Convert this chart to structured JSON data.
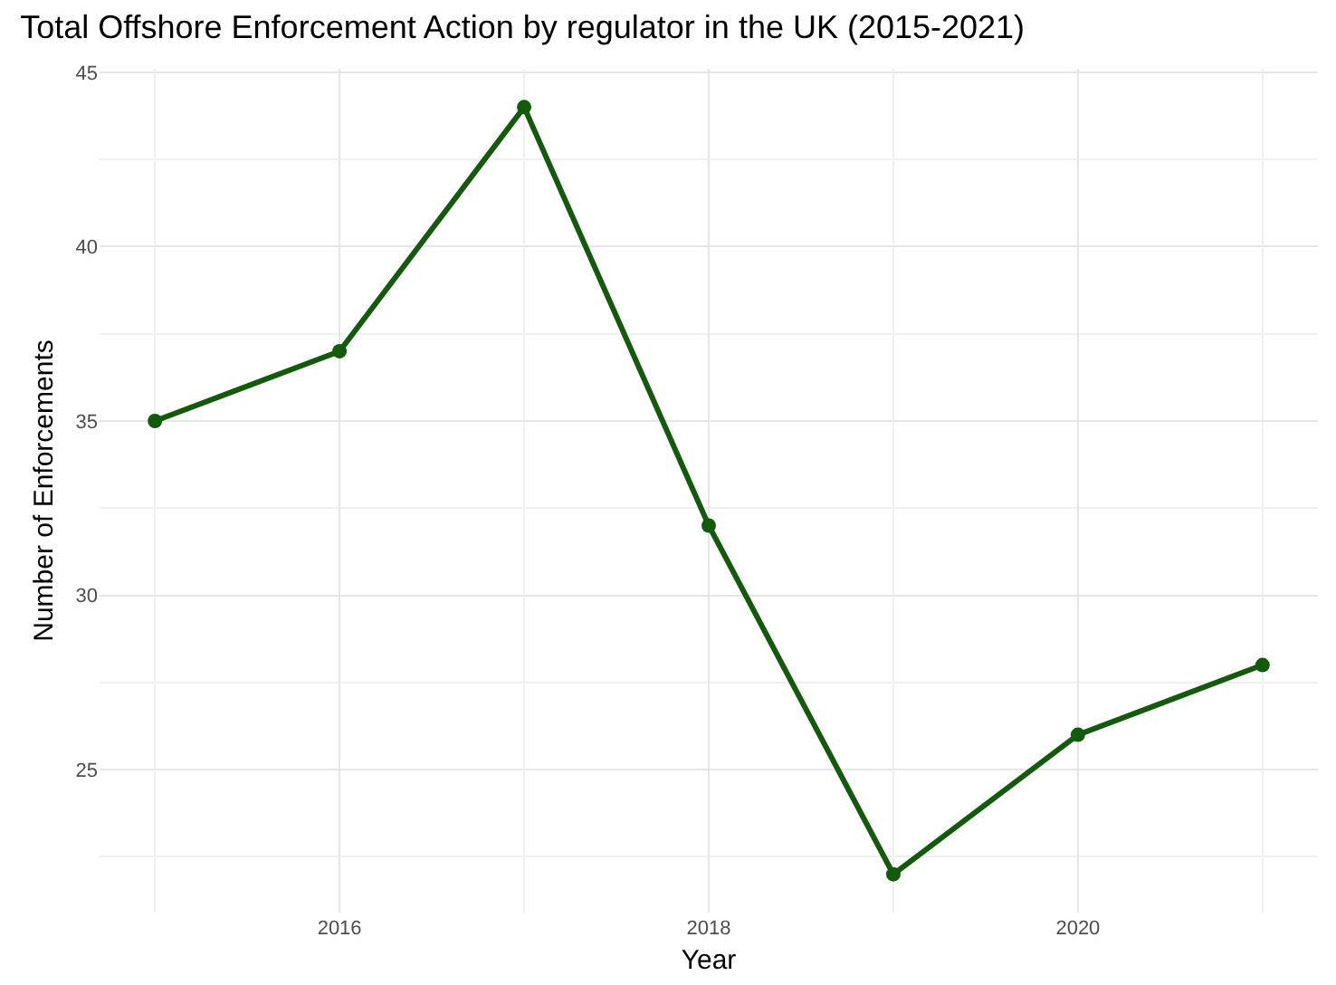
{
  "chart_data": {
    "type": "line",
    "title": "Total Offshore Enforcement Action by regulator in the UK (2015-2021)",
    "xlabel": "Year",
    "ylabel": "Number of Enforcements",
    "x": [
      2015,
      2016,
      2017,
      2018,
      2019,
      2020,
      2021
    ],
    "series": [
      {
        "color": "#145a0c",
        "values": [
          35,
          37,
          44,
          32,
          22,
          26,
          28
        ]
      }
    ],
    "xlim": [
      2014.7,
      2021.3
    ],
    "xticks": [
      2016,
      2018,
      2020
    ],
    "ylim": [
      20.9,
      45.1
    ],
    "yticks": [
      25,
      30,
      35,
      40,
      45
    ],
    "grid": true,
    "marker": "circle",
    "line_style": "solid"
  }
}
